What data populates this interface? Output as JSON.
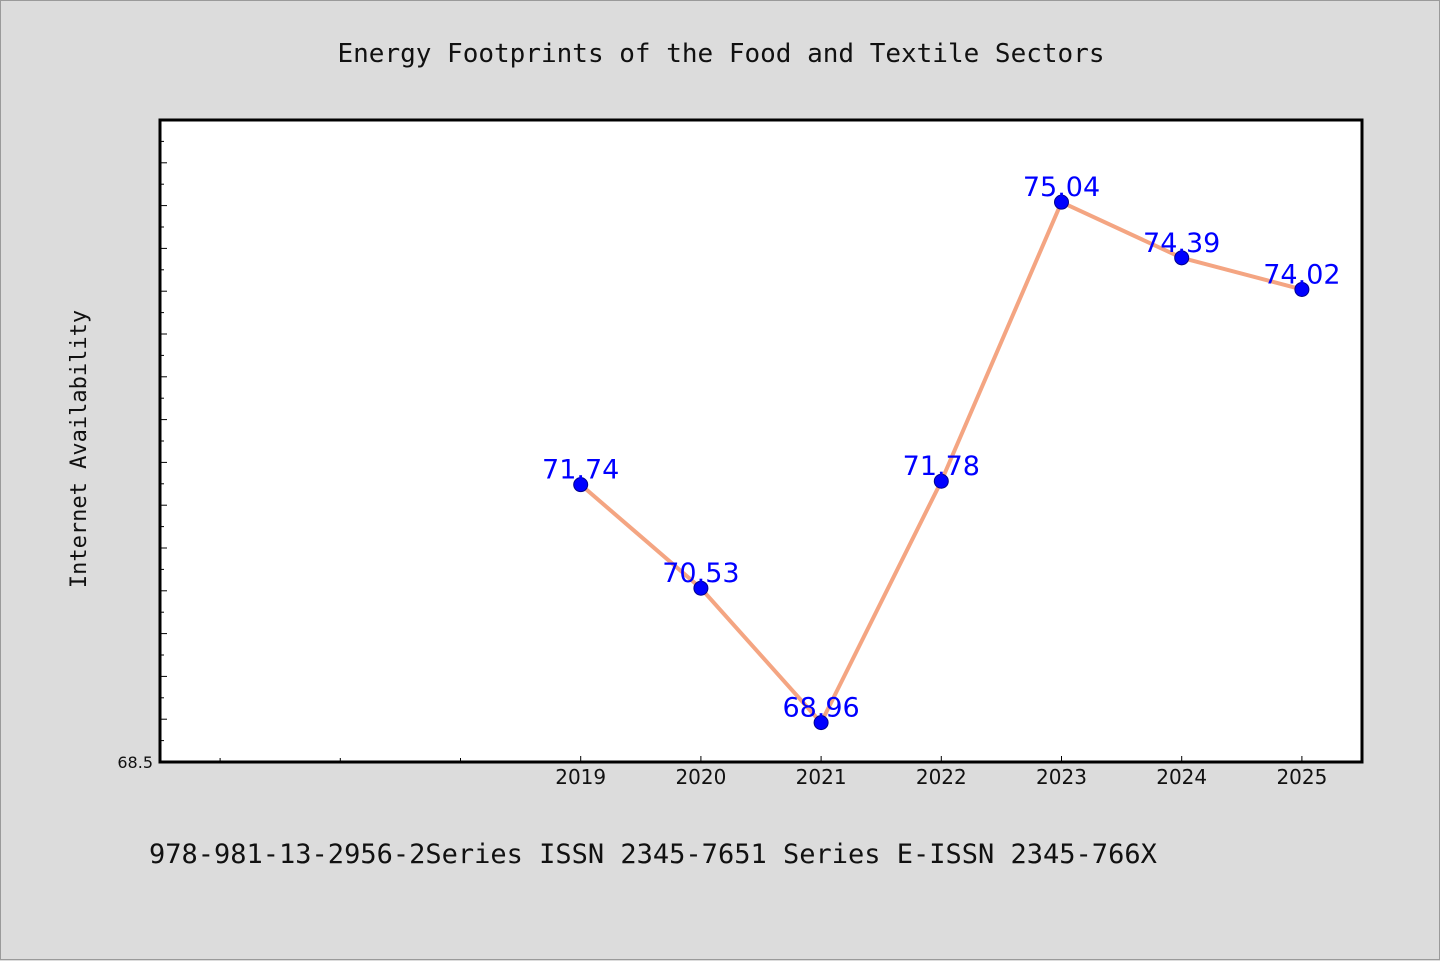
{
  "chart_data": {
    "type": "line",
    "title": "Energy Footprints of the Food and Textile Sectors",
    "xlabel": "",
    "ylabel": "Internet Availability",
    "categories": [
      "2019",
      "2020",
      "2021",
      "2022",
      "2023",
      "2024",
      "2025"
    ],
    "series": [
      {
        "values": [
          71.74,
          70.53,
          68.96,
          71.78,
          75.04,
          74.39,
          74.02
        ],
        "labels": [
          "71.74",
          "70.53",
          "68.96",
          "71.78",
          "75.04",
          "74.39",
          "74.02"
        ]
      }
    ],
    "y_min_label": "68.5",
    "ylim": [
      68.5,
      76.0
    ],
    "xlim": [
      2015.5,
      2025.5
    ],
    "grid": false,
    "legend": "none",
    "colors": {
      "line": "#f4a582",
      "marker": "#0000ff",
      "data_label": "#0000ff",
      "plot_bg": "#ffffff",
      "page_bg": "#dcdcdc"
    }
  },
  "footer": {
    "text": "978-981-13-2956-2Series ISSN 2345-7651 Series E-ISSN 2345-766X"
  }
}
